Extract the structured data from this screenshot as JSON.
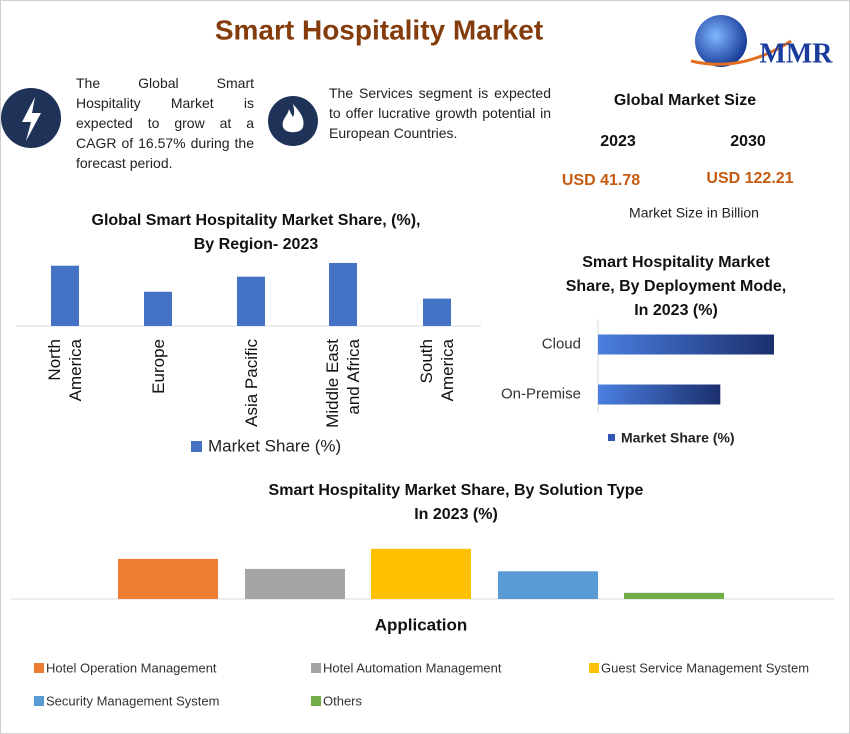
{
  "title": "Smart Hospitality Market",
  "logo": "MMR",
  "facts": [
    "The Global Smart Hospitality Market is expected to grow at a CAGR of 16.57% during the forecast period.",
    "The Services segment is expected to offer lucrative growth potential in European Countries."
  ],
  "market_size": {
    "title": "Global Market Size",
    "years": [
      "2023",
      "2030"
    ],
    "values": [
      "USD 41.78",
      "USD 122.21"
    ],
    "note": "Market Size in Billion"
  },
  "chart_data": [
    {
      "type": "bar",
      "title": "Global Smart Hospitality Market Share, (%),\nBy Region- 2023",
      "categories": [
        "North\nAmerica",
        "Europe",
        "Asia Pacific",
        "Middle East\nand Africa",
        "South\nAmerica"
      ],
      "series": [
        {
          "name": "Market Share (%)",
          "color": "#4472c4",
          "values": [
            22,
            12.5,
            18,
            23,
            10
          ]
        }
      ],
      "ylim": [
        0,
        25
      ],
      "legend": "bottom"
    },
    {
      "type": "barh",
      "title": "Smart Hospitality Market\nShare, By Deployment Mode,\nIn 2023 (%)",
      "categories": [
        "Cloud",
        "On-Premise"
      ],
      "series": [
        {
          "name": "Market Share (%)",
          "color": "#2f55b5",
          "values": [
            59,
            41
          ]
        }
      ],
      "xlim": [
        0,
        60
      ],
      "legend": "bottom"
    },
    {
      "type": "bar",
      "title": "Smart Hospitality Market  Share, By Solution Type\nIn 2023 (%)",
      "xlabel": "Application",
      "categories": [
        "Hotel Operation Management",
        "Hotel Automation Management",
        "Guest Service Management System",
        "Security Management System",
        "Others"
      ],
      "values": [
        26,
        19.5,
        32.5,
        18,
        4
      ],
      "colors": [
        "#ed7d31",
        "#a5a5a5",
        "#ffc000",
        "#5b9bd5",
        "#70ad47"
      ],
      "ylim": [
        0,
        35
      ],
      "legend": "bottom"
    }
  ]
}
